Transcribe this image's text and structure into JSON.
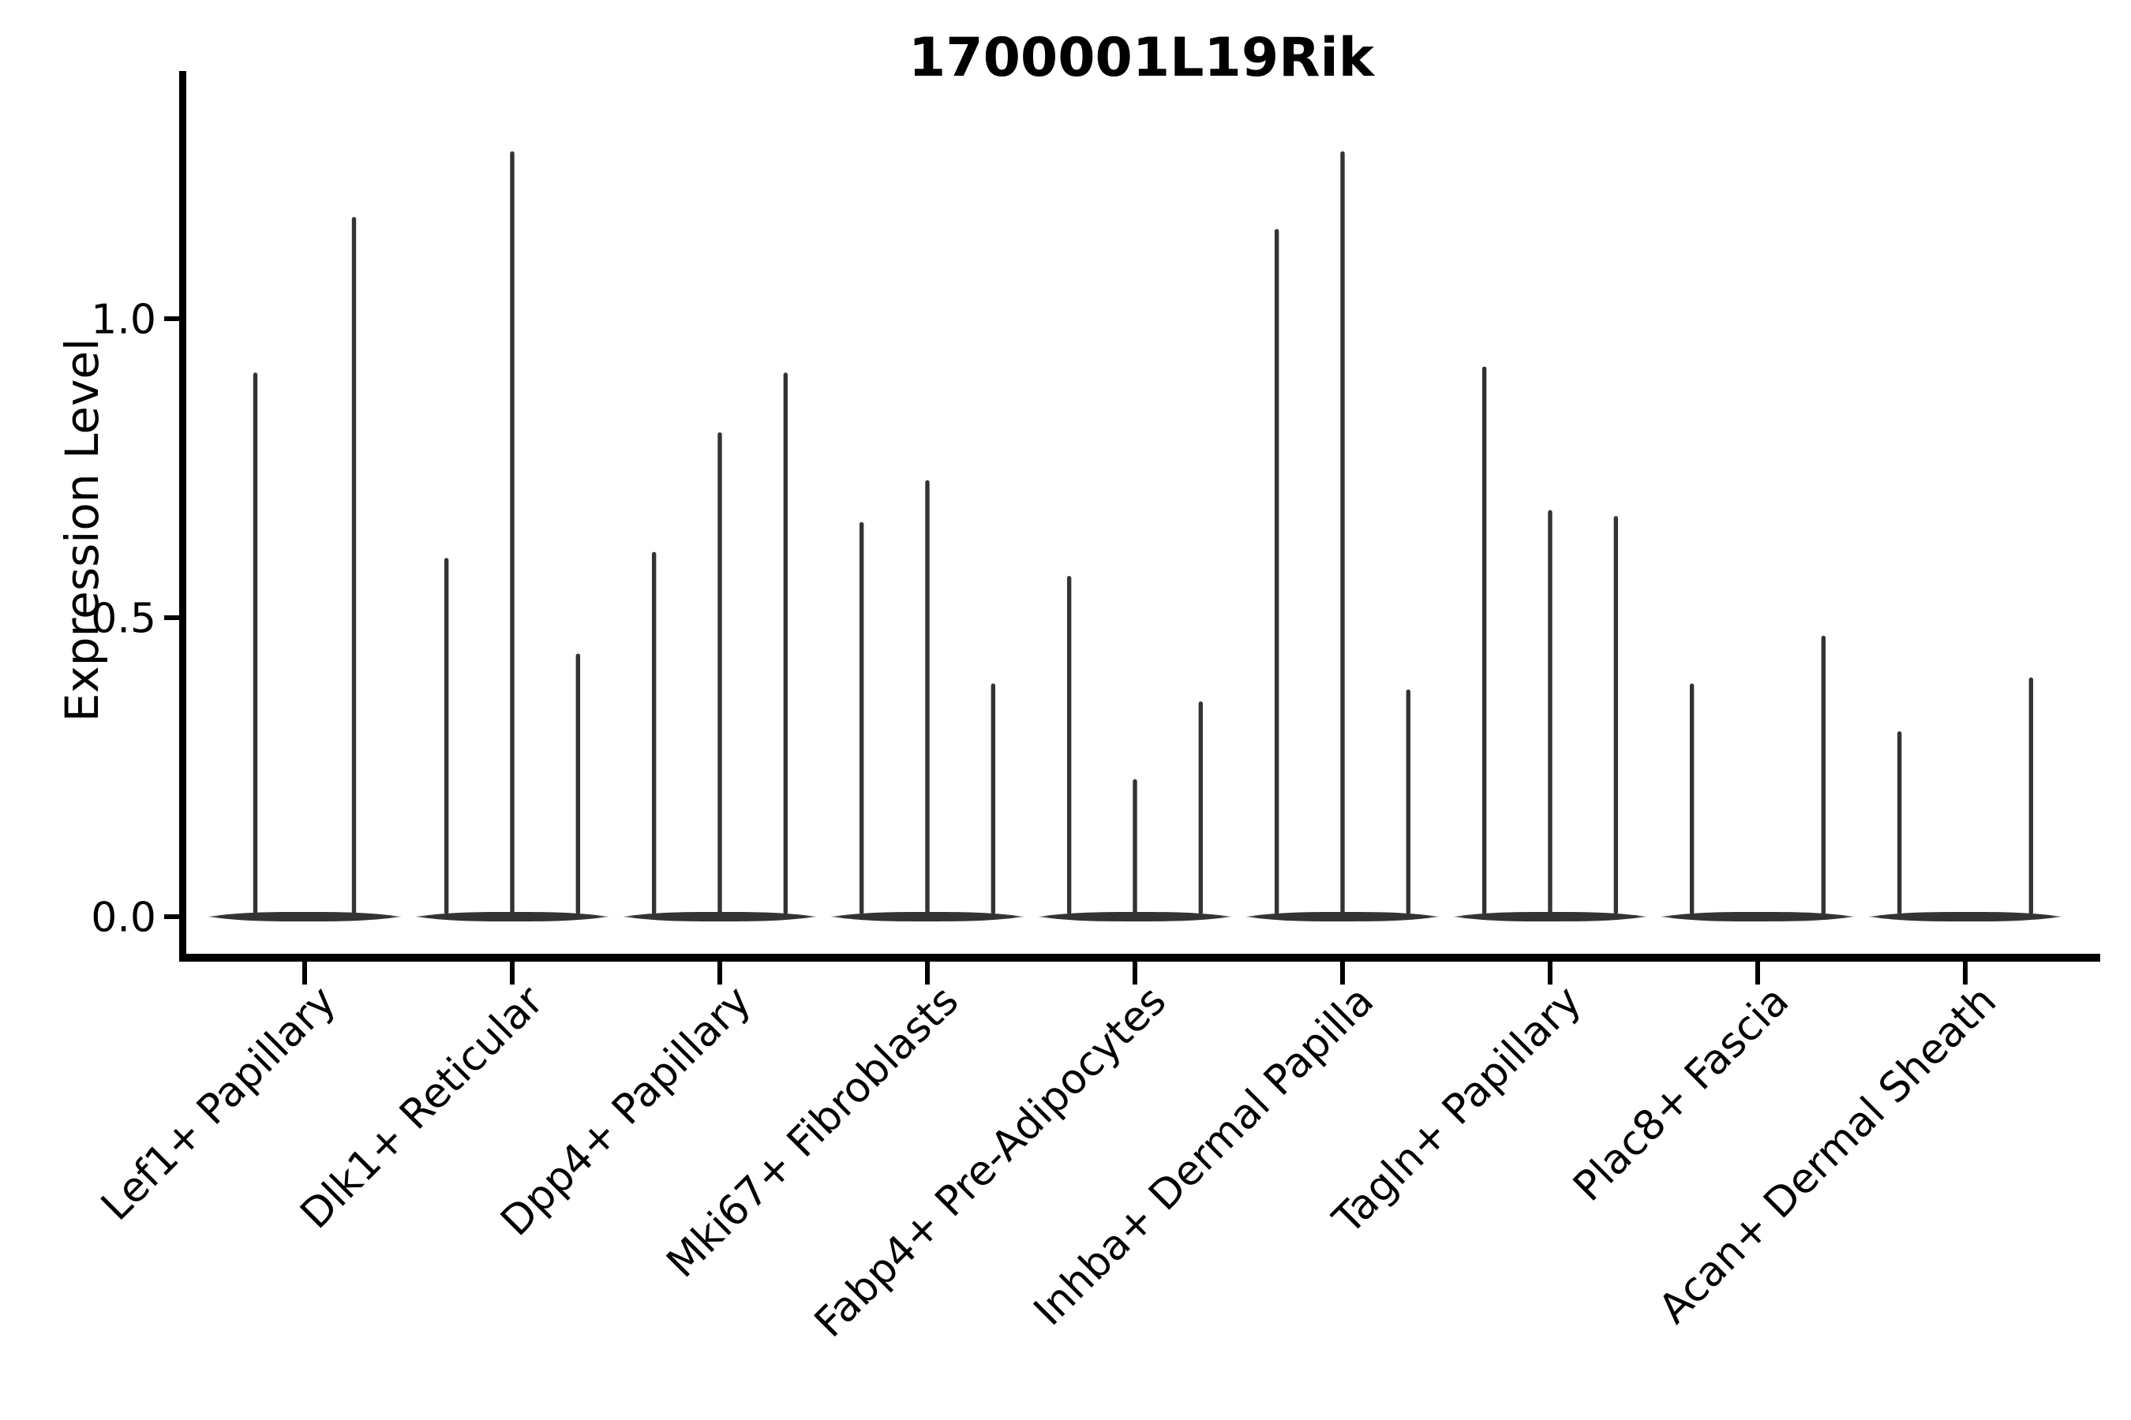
{
  "title": "1700001L19Rik",
  "y_axis": {
    "label": "Expression Level",
    "ticks": [
      {
        "label": "0.0",
        "value": 0.0
      },
      {
        "label": "0.5",
        "value": 0.5
      },
      {
        "label": "1.0",
        "value": 1.0
      }
    ]
  },
  "chart_data": {
    "type": "violin",
    "title": "1700001L19Rik",
    "xlabel": "",
    "ylabel": "Expression Level",
    "ylim": [
      -0.07,
      1.41
    ],
    "yticks": [
      0.0,
      0.5,
      1.0
    ],
    "grid": false,
    "legend": false,
    "orientation": "vertical",
    "style": {
      "violin_color": "#333333",
      "violin_tip_color": "#999999",
      "axis_color": "#000000",
      "background": "#ffffff"
    },
    "categories": [
      "Lef1+ Papillary",
      "Dlk1+ Reticular",
      "Dpp4+ Papillary",
      "Mki67+ Fibroblasts",
      "Fabp4+ Pre-Adipocytes",
      "Inhba+ Dermal Papilla",
      "Tagln+ Papillary",
      "Plac8+ Fascia",
      "Acan+ Dermal Sheath"
    ],
    "series": [
      {
        "category": "Lef1+ Papillary",
        "slots": 2,
        "violins": [
          {
            "slot": 0,
            "peak": 0.91
          },
          {
            "slot": 1,
            "peak": 1.17
          }
        ]
      },
      {
        "category": "Dlk1+ Reticular",
        "slots": 3,
        "violins": [
          {
            "slot": 0,
            "peak": 0.6
          },
          {
            "slot": 1,
            "peak": 1.28
          },
          {
            "slot": 2,
            "peak": 0.44
          }
        ]
      },
      {
        "category": "Dpp4+ Papillary",
        "slots": 3,
        "violins": [
          {
            "slot": 0,
            "peak": 0.61
          },
          {
            "slot": 1,
            "peak": 0.81
          },
          {
            "slot": 2,
            "peak": 0.91
          }
        ]
      },
      {
        "category": "Mki67+ Fibroblasts",
        "slots": 3,
        "violins": [
          {
            "slot": 0,
            "peak": 0.66
          },
          {
            "slot": 1,
            "peak": 0.73
          },
          {
            "slot": 2,
            "peak": 0.39
          }
        ]
      },
      {
        "category": "Fabp4+ Pre-Adipocytes",
        "slots": 3,
        "violins": [
          {
            "slot": 0,
            "peak": 0.57
          },
          {
            "slot": 1,
            "peak": 0.23
          },
          {
            "slot": 2,
            "peak": 0.36
          }
        ]
      },
      {
        "category": "Inhba+ Dermal Papilla",
        "slots": 3,
        "violins": [
          {
            "slot": 0,
            "peak": 1.15
          },
          {
            "slot": 1,
            "peak": 1.28
          },
          {
            "slot": 2,
            "peak": 0.38
          }
        ]
      },
      {
        "category": "Tagln+ Papillary",
        "slots": 3,
        "violins": [
          {
            "slot": 0,
            "peak": 0.92
          },
          {
            "slot": 1,
            "peak": 0.68
          },
          {
            "slot": 2,
            "peak": 0.67
          }
        ]
      },
      {
        "category": "Plac8+ Fascia",
        "slots": 3,
        "violins": [
          {
            "slot": 0,
            "peak": 0.39
          },
          {
            "slot": 2,
            "peak": 0.47
          }
        ]
      },
      {
        "category": "Acan+ Dermal Sheath",
        "slots": 3,
        "violins": [
          {
            "slot": 0,
            "peak": 0.31
          },
          {
            "slot": 2,
            "peak": 0.4
          }
        ]
      }
    ],
    "description": "Violin plot of expression level per cell-type category; each category shows 2-3 thin dodged violins whose mass is concentrated at 0 (flat base) with a narrow spike rising to the listed peak expression value."
  }
}
